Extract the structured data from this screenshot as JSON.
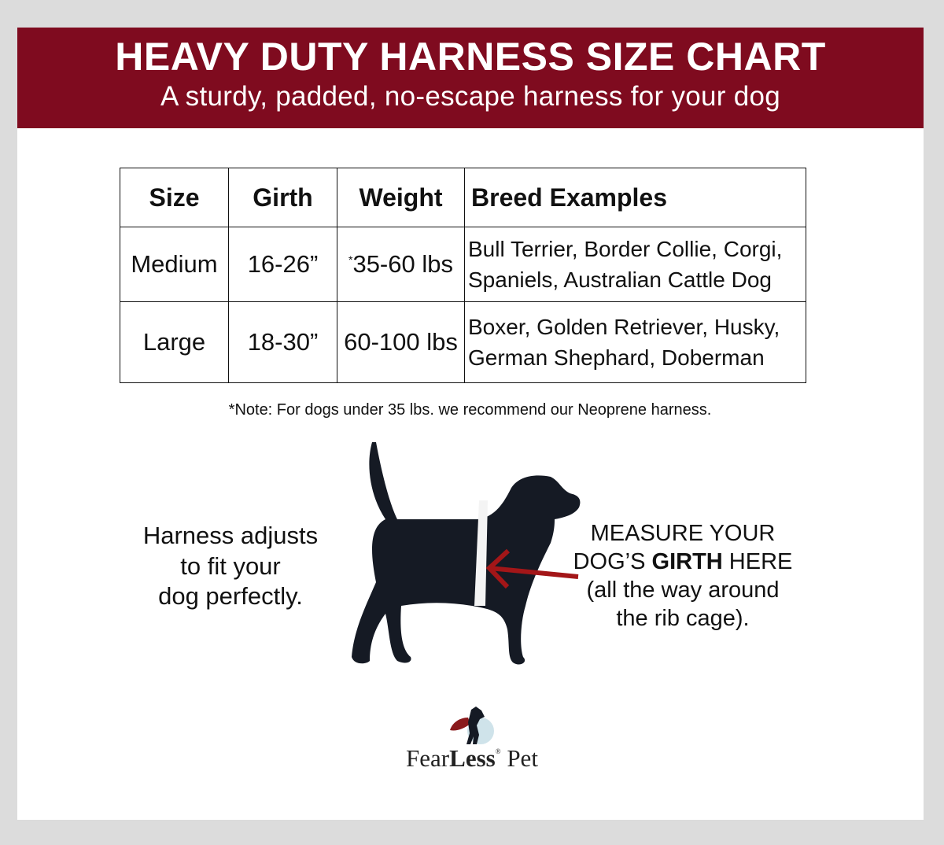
{
  "header": {
    "title": "HEAVY DUTY HARNESS SIZE CHART",
    "subtitle": "A sturdy, padded, no-escape harness for your dog",
    "color": "#7f0b1f"
  },
  "table": {
    "headers": [
      "Size",
      "Girth",
      "Weight",
      "Breed Examples"
    ],
    "rows": [
      {
        "size": "Medium",
        "girth": "16-26”",
        "weight_mark": "*",
        "weight": "35-60 lbs",
        "breeds_line1": "Bull Terrier, Border Collie, Corgi,",
        "breeds_line2": "Spaniels, Australian Cattle Dog"
      },
      {
        "size": "Large",
        "girth": "18-30”",
        "weight_mark": "",
        "weight": "60-100 lbs",
        "breeds_line1": "Boxer, Golden Retriever, Husky,",
        "breeds_line2": "German Shephard, Doberman"
      }
    ]
  },
  "note": "*Note: For dogs under 35 lbs. we recommend our Neoprene harness.",
  "left_text": [
    "Harness adjusts",
    "to fit your",
    "dog perfectly."
  ],
  "right_text": {
    "line1": "MEASURE YOUR",
    "line2_pre": "DOG’S ",
    "line2_bold": "GIRTH",
    "line2_post": " HERE",
    "line3": "(all the way around",
    "line4": "the rib cage)."
  },
  "brand": {
    "part1": "Fear",
    "part2": "Less",
    "reg": "®",
    "part3": " Pet"
  },
  "icons": {
    "dog": "dog-silhouette-icon",
    "arrow": "arrow-left-icon",
    "logo": "caped-dog-logo"
  }
}
